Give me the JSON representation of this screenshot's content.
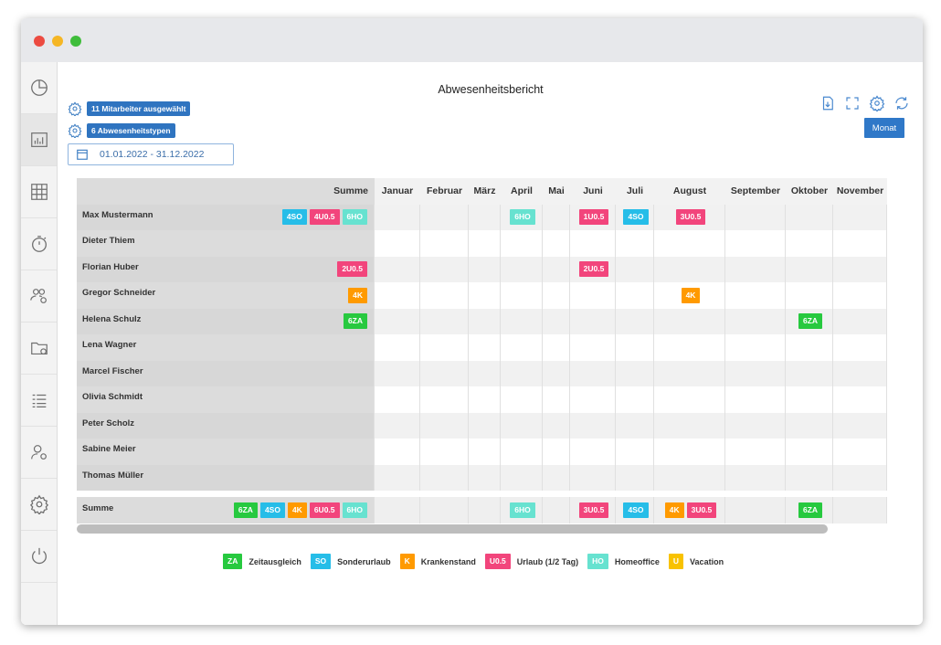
{
  "window": {
    "dots": [
      "#ec4b41",
      "#f5b625",
      "#3fbd3b"
    ]
  },
  "colors": {
    "ZA": "#27c93f",
    "SO": "#26bde8",
    "K": "#ff9a00",
    "U0.5": "#f2457c",
    "HO": "#67e2d0",
    "U": "#f8c200"
  },
  "sidebar": {
    "items": [
      {
        "name": "pie-chart-icon"
      },
      {
        "name": "bar-chart-icon",
        "active": true
      },
      {
        "name": "calendar-grid-icon"
      },
      {
        "name": "stopwatch-icon"
      },
      {
        "name": "group-settings-icon"
      },
      {
        "name": "folder-settings-icon"
      },
      {
        "name": "list-icon"
      },
      {
        "name": "user-settings-icon"
      },
      {
        "name": "gear-icon"
      },
      {
        "name": "power-icon"
      }
    ]
  },
  "report": {
    "title": "Abwesenheitsbericht",
    "employees_chip": "11 Mitarbeiter ausgewählt",
    "types_chip": "6 Abwesenheitstypen",
    "date_range": "01.01.2022 - 31.12.2022",
    "month_button": "Monat"
  },
  "table": {
    "sum_header": "Summe",
    "months": [
      "Januar",
      "Februar",
      "März",
      "April",
      "Mai",
      "Juni",
      "Juli",
      "August",
      "September",
      "Oktober",
      "November"
    ],
    "rows": [
      {
        "name": "Max Mustermann",
        "sum": [
          [
            "4SO",
            "SO"
          ],
          [
            "4U0.5",
            "U0.5"
          ],
          [
            "6HO",
            "HO"
          ]
        ],
        "cells": {
          "3": [
            [
              "6HO",
              "HO"
            ]
          ],
          "5": [
            [
              "1U0.5",
              "U0.5"
            ]
          ],
          "6": [
            [
              "4SO",
              "SO"
            ]
          ],
          "7": [
            [
              "3U0.5",
              "U0.5"
            ]
          ]
        }
      },
      {
        "name": "Dieter Thiem",
        "sum": [],
        "cells": {}
      },
      {
        "name": "Florian Huber",
        "sum": [
          [
            "2U0.5",
            "U0.5"
          ]
        ],
        "cells": {
          "5": [
            [
              "2U0.5",
              "U0.5"
            ]
          ]
        }
      },
      {
        "name": "Gregor Schneider",
        "sum": [
          [
            "4K",
            "K"
          ]
        ],
        "cells": {
          "7": [
            [
              "4K",
              "K"
            ]
          ]
        }
      },
      {
        "name": "Helena Schulz",
        "sum": [
          [
            "6ZA",
            "ZA"
          ]
        ],
        "cells": {
          "9": [
            [
              "6ZA",
              "ZA"
            ]
          ]
        }
      },
      {
        "name": "Lena Wagner",
        "sum": [],
        "cells": {}
      },
      {
        "name": "Marcel Fischer",
        "sum": [],
        "cells": {}
      },
      {
        "name": "Olivia Schmidt",
        "sum": [],
        "cells": {}
      },
      {
        "name": "Peter Scholz",
        "sum": [],
        "cells": {}
      },
      {
        "name": "Sabine Meier",
        "sum": [],
        "cells": {}
      },
      {
        "name": "Thomas Müller",
        "sum": [],
        "cells": {}
      }
    ],
    "total": {
      "name": "Summe",
      "sum": [
        [
          "6ZA",
          "ZA"
        ],
        [
          "4SO",
          "SO"
        ],
        [
          "4K",
          "K"
        ],
        [
          "6U0.5",
          "U0.5"
        ],
        [
          "6HO",
          "HO"
        ]
      ],
      "cells": {
        "3": [
          [
            "6HO",
            "HO"
          ]
        ],
        "5": [
          [
            "3U0.5",
            "U0.5"
          ]
        ],
        "6": [
          [
            "4SO",
            "SO"
          ]
        ],
        "7": [
          [
            "4K",
            "K"
          ],
          [
            "3U0.5",
            "U0.5"
          ]
        ],
        "9": [
          [
            "6ZA",
            "ZA"
          ]
        ]
      }
    }
  },
  "legend": [
    {
      "code": "ZA",
      "label": "Zeitausgleich"
    },
    {
      "code": "SO",
      "label": "Sonderurlaub"
    },
    {
      "code": "K",
      "label": "Krankenstand"
    },
    {
      "code": "U0.5",
      "label": "Urlaub (1/2 Tag)"
    },
    {
      "code": "HO",
      "label": "Homeoffice"
    },
    {
      "code": "U",
      "label": "Vacation"
    }
  ]
}
